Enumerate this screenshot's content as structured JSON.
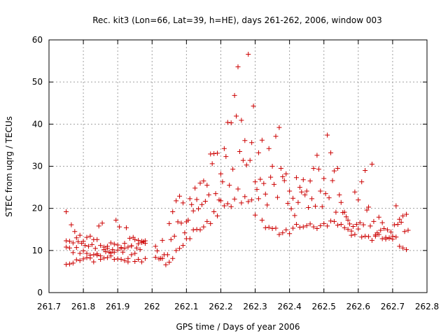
{
  "chart_data": {
    "type": "scatter",
    "title": "Rec. kit3 (Lon=66, Lat=39, h=HE), days 261-262, 2006, window 003",
    "xlabel": "GPS time / Days of year 2006",
    "ylabel": "STEC from uqrg / TECUs",
    "xlim": [
      261.7,
      262.8
    ],
    "ylim": [
      0,
      60
    ],
    "xticks": [
      "261.7",
      "261.8",
      "261.9",
      "262",
      "262.1",
      "262.2",
      "262.3",
      "262.4",
      "262.5",
      "262.6",
      "262.7",
      "262.8"
    ],
    "yticks": [
      "0",
      "10",
      "20",
      "30",
      "40",
      "50",
      "60"
    ],
    "grid": true,
    "color": "#cc0000",
    "marker": "plus",
    "points": [
      [
        261.75,
        19.2
      ],
      [
        261.75,
        12.3
      ],
      [
        261.75,
        10.8
      ],
      [
        261.75,
        6.7
      ],
      [
        261.76,
        12.2
      ],
      [
        261.76,
        10.6
      ],
      [
        261.76,
        6.8
      ],
      [
        261.765,
        16.1
      ],
      [
        261.77,
        11.8
      ],
      [
        261.77,
        9.5
      ],
      [
        261.77,
        7.0
      ],
      [
        261.775,
        14.5
      ],
      [
        261.78,
        13.0
      ],
      [
        261.78,
        10.7
      ],
      [
        261.78,
        7.8
      ],
      [
        261.785,
        12.1
      ],
      [
        261.79,
        13.6
      ],
      [
        261.79,
        9.3
      ],
      [
        261.79,
        7.6
      ],
      [
        261.795,
        11.7
      ],
      [
        261.8,
        12.2
      ],
      [
        261.8,
        9.9
      ],
      [
        261.8,
        8.0
      ],
      [
        261.805,
        11.2
      ],
      [
        261.81,
        13.1
      ],
      [
        261.81,
        9.3
      ],
      [
        261.81,
        8.3
      ],
      [
        261.815,
        11.0
      ],
      [
        261.82,
        13.4
      ],
      [
        261.82,
        8.9
      ],
      [
        261.82,
        8.2
      ],
      [
        261.825,
        11.4
      ],
      [
        261.83,
        12.6
      ],
      [
        261.83,
        9.0
      ],
      [
        261.83,
        7.3
      ],
      [
        261.835,
        10.5
      ],
      [
        261.84,
        12.6
      ],
      [
        261.84,
        9.2
      ],
      [
        261.84,
        8.9
      ],
      [
        261.845,
        15.8
      ],
      [
        261.85,
        11.2
      ],
      [
        261.85,
        8.7
      ],
      [
        261.85,
        7.9
      ],
      [
        261.855,
        16.5
      ],
      [
        261.86,
        10.2
      ],
      [
        261.86,
        10.8
      ],
      [
        261.86,
        8.2
      ],
      [
        261.865,
        9.7
      ],
      [
        261.87,
        10.5
      ],
      [
        261.87,
        11.0
      ],
      [
        261.87,
        8.3
      ],
      [
        261.875,
        9.6
      ],
      [
        261.88,
        11.8
      ],
      [
        261.88,
        9.4
      ],
      [
        261.88,
        8.7
      ],
      [
        261.885,
        10.2
      ],
      [
        261.89,
        11.5
      ],
      [
        261.89,
        9.6
      ],
      [
        261.89,
        7.9
      ],
      [
        261.895,
        17.2
      ],
      [
        261.9,
        11.3
      ],
      [
        261.9,
        10.1
      ],
      [
        261.9,
        8.0
      ],
      [
        261.905,
        15.6
      ],
      [
        261.91,
        10.7
      ],
      [
        261.91,
        10.5
      ],
      [
        261.91,
        7.9
      ],
      [
        261.915,
        9.6
      ],
      [
        261.92,
        10.5
      ],
      [
        261.92,
        11.7
      ],
      [
        261.92,
        7.6
      ],
      [
        261.925,
        15.4
      ],
      [
        261.93,
        10.8
      ],
      [
        261.93,
        8.1
      ],
      [
        261.93,
        7.3
      ],
      [
        261.935,
        12.9
      ],
      [
        261.94,
        11.1
      ],
      [
        261.94,
        11.1
      ],
      [
        261.94,
        9.0
      ],
      [
        261.945,
        13.1
      ],
      [
        261.95,
        12.6
      ],
      [
        261.95,
        9.3
      ],
      [
        261.95,
        7.4
      ],
      [
        261.955,
        10.6
      ],
      [
        261.96,
        11.6
      ],
      [
        261.96,
        12.4
      ],
      [
        261.96,
        7.9
      ],
      [
        261.965,
        10.2
      ],
      [
        261.97,
        12.2
      ],
      [
        261.97,
        11.9
      ],
      [
        261.97,
        7.3
      ],
      [
        261.975,
        12.1
      ],
      [
        261.98,
        11.7
      ],
      [
        261.98,
        12.3
      ],
      [
        261.98,
        8.1
      ],
      [
        262.01,
        11.0
      ],
      [
        262.01,
        8.4
      ],
      [
        262.015,
        9.9
      ],
      [
        262.02,
        8.0
      ],
      [
        262.025,
        8.1
      ],
      [
        262.03,
        12.4
      ],
      [
        262.03,
        8.1
      ],
      [
        262.035,
        9.0
      ],
      [
        262.04,
        6.6
      ],
      [
        262.045,
        9.0
      ],
      [
        262.05,
        16.4
      ],
      [
        262.05,
        7.2
      ],
      [
        262.055,
        12.6
      ],
      [
        262.06,
        19.2
      ],
      [
        262.06,
        8.1
      ],
      [
        262.065,
        13.4
      ],
      [
        262.07,
        21.8
      ],
      [
        262.07,
        10.0
      ],
      [
        262.075,
        16.8
      ],
      [
        262.08,
        22.9
      ],
      [
        262.08,
        10.5
      ],
      [
        262.085,
        16.5
      ],
      [
        262.09,
        21.3
      ],
      [
        262.09,
        11.2
      ],
      [
        262.095,
        14.2
      ],
      [
        262.1,
        16.8
      ],
      [
        262.1,
        12.8
      ],
      [
        262.105,
        17.2
      ],
      [
        262.11,
        22.3
      ],
      [
        262.11,
        12.8
      ],
      [
        262.115,
        20.9
      ],
      [
        262.12,
        19.4
      ],
      [
        262.12,
        14.9
      ],
      [
        262.125,
        24.8
      ],
      [
        262.13,
        22.1
      ],
      [
        262.13,
        15.0
      ],
      [
        262.135,
        19.9
      ],
      [
        262.14,
        26.0
      ],
      [
        262.14,
        14.9
      ],
      [
        262.145,
        20.9
      ],
      [
        262.15,
        26.5
      ],
      [
        262.15,
        15.6
      ],
      [
        262.155,
        21.7
      ],
      [
        262.16,
        25.5
      ],
      [
        262.16,
        16.9
      ],
      [
        262.165,
        23.2
      ],
      [
        262.17,
        32.9
      ],
      [
        262.17,
        16.4
      ],
      [
        262.175,
        30.6
      ],
      [
        262.18,
        33.0
      ],
      [
        262.18,
        19.2
      ],
      [
        262.185,
        23.5
      ],
      [
        262.19,
        33.1
      ],
      [
        262.19,
        18.2
      ],
      [
        262.195,
        22.0
      ],
      [
        262.2,
        28.2
      ],
      [
        262.2,
        21.8
      ],
      [
        262.205,
        26.3
      ],
      [
        262.21,
        34.2
      ],
      [
        262.21,
        20.6
      ],
      [
        262.215,
        32.3
      ],
      [
        262.22,
        40.4
      ],
      [
        262.22,
        21.1
      ],
      [
        262.225,
        25.5
      ],
      [
        262.23,
        40.3
      ],
      [
        262.23,
        20.4
      ],
      [
        262.235,
        29.3
      ],
      [
        262.24,
        46.8
      ],
      [
        262.24,
        22.2
      ],
      [
        262.245,
        41.9
      ],
      [
        262.25,
        53.6
      ],
      [
        262.25,
        24.6
      ],
      [
        262.255,
        33.5
      ],
      [
        262.26,
        40.9
      ],
      [
        262.26,
        21.3
      ],
      [
        262.265,
        31.4
      ],
      [
        262.27,
        36.1
      ],
      [
        262.27,
        22.8
      ],
      [
        262.275,
        30.3
      ],
      [
        262.28,
        56.6
      ],
      [
        262.28,
        21.6
      ],
      [
        262.285,
        31.4
      ],
      [
        262.29,
        35.6
      ],
      [
        262.29,
        22.0
      ],
      [
        262.295,
        44.3
      ],
      [
        262.3,
        26.3
      ],
      [
        262.3,
        18.4
      ],
      [
        262.305,
        24.5
      ],
      [
        262.31,
        33.2
      ],
      [
        262.31,
        22.3
      ],
      [
        262.315,
        26.9
      ],
      [
        262.32,
        36.2
      ],
      [
        262.32,
        17.2
      ],
      [
        262.325,
        25.9
      ],
      [
        262.33,
        23.4
      ],
      [
        262.33,
        15.4
      ],
      [
        262.335,
        20.8
      ],
      [
        262.34,
        34.2
      ],
      [
        262.34,
        15.5
      ],
      [
        262.345,
        27.4
      ],
      [
        262.35,
        30.0
      ],
      [
        262.35,
        15.2
      ],
      [
        262.355,
        25.7
      ],
      [
        262.36,
        37.1
      ],
      [
        262.36,
        15.3
      ],
      [
        262.365,
        22.6
      ],
      [
        262.37,
        39.2
      ],
      [
        262.37,
        13.8
      ],
      [
        262.375,
        29.5
      ],
      [
        262.38,
        27.5
      ],
      [
        262.38,
        14.2
      ],
      [
        262.385,
        26.6
      ],
      [
        262.39,
        28.2
      ],
      [
        262.39,
        14.9
      ],
      [
        262.395,
        21.2
      ],
      [
        262.4,
        24.1
      ],
      [
        262.4,
        14.0
      ],
      [
        262.405,
        19.9
      ],
      [
        262.41,
        22.4
      ],
      [
        262.41,
        15.3
      ],
      [
        262.415,
        18.3
      ],
      [
        262.42,
        27.3
      ],
      [
        262.42,
        16.2
      ],
      [
        262.425,
        21.4
      ],
      [
        262.43,
        25.0
      ],
      [
        262.43,
        15.5
      ],
      [
        262.435,
        23.9
      ],
      [
        262.44,
        26.8
      ],
      [
        262.44,
        15.6
      ],
      [
        262.445,
        23.2
      ],
      [
        262.45,
        24.1
      ],
      [
        262.45,
        15.9
      ],
      [
        262.455,
        20.2
      ],
      [
        262.46,
        26.5
      ],
      [
        262.46,
        16.3
      ],
      [
        262.465,
        22.3
      ],
      [
        262.47,
        29.5
      ],
      [
        262.47,
        15.6
      ],
      [
        262.475,
        20.5
      ],
      [
        262.48,
        32.6
      ],
      [
        262.48,
        15.2
      ],
      [
        262.485,
        29.3
      ],
      [
        262.49,
        24.1
      ],
      [
        262.49,
        15.9
      ],
      [
        262.495,
        20.4
      ],
      [
        262.5,
        27.1
      ],
      [
        262.5,
        16.4
      ],
      [
        262.505,
        23.5
      ],
      [
        262.51,
        37.4
      ],
      [
        262.51,
        15.8
      ],
      [
        262.515,
        22.5
      ],
      [
        262.52,
        33.2
      ],
      [
        262.52,
        17.0
      ],
      [
        262.525,
        26.6
      ],
      [
        262.53,
        28.9
      ],
      [
        262.53,
        16.9
      ],
      [
        262.535,
        19.1
      ],
      [
        262.54,
        29.5
      ],
      [
        262.54,
        16.0
      ],
      [
        262.545,
        23.2
      ],
      [
        262.55,
        21.4
      ],
      [
        262.55,
        16.2
      ],
      [
        262.555,
        19.0
      ],
      [
        262.56,
        19.1
      ],
      [
        262.56,
        15.4
      ],
      [
        262.565,
        18.0
      ],
      [
        262.57,
        17.2
      ],
      [
        262.57,
        15.0
      ],
      [
        262.575,
        16.3
      ],
      [
        262.58,
        14.6
      ],
      [
        262.58,
        13.6
      ],
      [
        262.585,
        15.7
      ],
      [
        262.59,
        23.9
      ],
      [
        262.59,
        13.8
      ],
      [
        262.595,
        16.2
      ],
      [
        262.6,
        22.0
      ],
      [
        262.6,
        15.1
      ],
      [
        262.605,
        16.6
      ],
      [
        262.61,
        26.3
      ],
      [
        262.61,
        13.2
      ],
      [
        262.615,
        16.1
      ],
      [
        262.62,
        29.0
      ],
      [
        262.62,
        13.4
      ],
      [
        262.625,
        19.6
      ],
      [
        262.63,
        20.3
      ],
      [
        262.63,
        13.3
      ],
      [
        262.635,
        15.8
      ],
      [
        262.64,
        30.5
      ],
      [
        262.64,
        12.4
      ],
      [
        262.645,
        16.9
      ],
      [
        262.65,
        13.7
      ],
      [
        262.65,
        13.4
      ],
      [
        262.655,
        14.2
      ],
      [
        262.66,
        17.9
      ],
      [
        262.66,
        13.8
      ],
      [
        262.665,
        14.8
      ],
      [
        262.67,
        16.6
      ],
      [
        262.67,
        12.8
      ],
      [
        262.675,
        15.2
      ],
      [
        262.68,
        13.1
      ],
      [
        262.68,
        12.7
      ],
      [
        262.685,
        14.9
      ],
      [
        262.69,
        12.9
      ],
      [
        262.69,
        13.0
      ],
      [
        262.695,
        14.4
      ],
      [
        262.7,
        13.4
      ],
      [
        262.7,
        12.7
      ],
      [
        262.705,
        16.1
      ],
      [
        262.71,
        20.6
      ],
      [
        262.71,
        13.2
      ],
      [
        262.715,
        16.2
      ],
      [
        262.72,
        17.4
      ],
      [
        262.72,
        11.0
      ],
      [
        262.725,
        16.7
      ],
      [
        262.73,
        18.2
      ],
      [
        262.73,
        10.6
      ],
      [
        262.735,
        14.5
      ],
      [
        262.74,
        18.6
      ],
      [
        262.74,
        10.2
      ],
      [
        262.745,
        14.8
      ]
    ]
  }
}
